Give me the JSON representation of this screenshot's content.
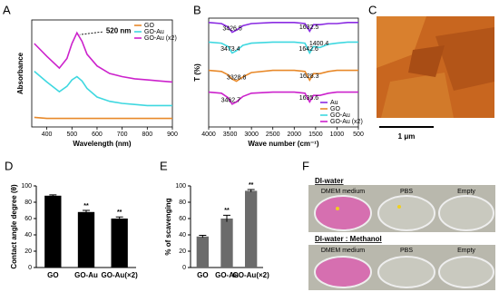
{
  "panels": [
    "A",
    "B",
    "C",
    "D",
    "E",
    "F"
  ],
  "chart_data": [
    {
      "type": "line",
      "xlabel": "Wavelength (nm)",
      "ylabel": "Absorbance",
      "x": [
        350,
        400,
        450,
        480,
        500,
        520,
        540,
        560,
        600,
        650,
        700,
        750,
        800,
        850,
        900
      ],
      "xlim": [
        340,
        900
      ],
      "xticks": [
        400,
        500,
        600,
        700,
        800,
        900
      ],
      "ylim": [
        0,
        1
      ],
      "legend": "upper right",
      "series": [
        {
          "name": "GO",
          "color": "#e8892a",
          "values": [
            0.09,
            0.08,
            0.08,
            0.08,
            0.08,
            0.08,
            0.08,
            0.08,
            0.08,
            0.08,
            0.08,
            0.08,
            0.08,
            0.08,
            0.08
          ]
        },
        {
          "name": "GO-Au",
          "color": "#3fd8e0",
          "values": [
            0.52,
            0.42,
            0.33,
            0.38,
            0.44,
            0.47,
            0.43,
            0.36,
            0.28,
            0.24,
            0.22,
            0.21,
            0.2,
            0.2,
            0.2
          ]
        },
        {
          "name": "GO-Au (x2)",
          "color": "#cc22cc",
          "values": [
            0.78,
            0.66,
            0.55,
            0.64,
            0.78,
            0.88,
            0.8,
            0.68,
            0.57,
            0.5,
            0.47,
            0.45,
            0.44,
            0.43,
            0.42
          ]
        }
      ],
      "annotations": [
        {
          "text": "520 nm",
          "x": 520,
          "y": 0.88
        }
      ]
    },
    {
      "type": "line",
      "xlabel": "Wave number (cm⁻¹)",
      "ylabel": "T (%)",
      "x": [
        4000,
        3700,
        3550,
        3450,
        3350,
        3200,
        3000,
        2500,
        2000,
        1750,
        1640,
        1550,
        1400,
        1200,
        1000,
        750,
        500
      ],
      "xlim": [
        4000,
        500
      ],
      "xticks": [
        4000,
        3500,
        3000,
        2500,
        2000,
        1500,
        1000,
        500
      ],
      "ylim": [
        0,
        100
      ],
      "legend": "lower right",
      "series": [
        {
          "name": "Au",
          "color": "#8a2be2",
          "values": [
            96,
            95,
            92,
            87,
            89,
            93,
            95,
            96,
            96,
            95,
            88,
            94,
            94,
            95,
            95,
            96,
            96
          ]
        },
        {
          "name": "GO",
          "color": "#e8892a",
          "values": [
            52,
            51,
            48,
            44,
            42,
            46,
            50,
            52,
            52,
            51,
            43,
            49,
            49,
            51,
            52,
            52,
            52
          ]
        },
        {
          "name": "GO-Au",
          "color": "#3fd8e0",
          "values": [
            78,
            77,
            74,
            68,
            70,
            75,
            77,
            78,
            78,
            77,
            68,
            74,
            73,
            76,
            77,
            78,
            78
          ]
        },
        {
          "name": "GO-Au (x2)",
          "color": "#cc22cc",
          "values": [
            32,
            31,
            27,
            21,
            23,
            28,
            31,
            32,
            32,
            31,
            23,
            29,
            29,
            31,
            32,
            32,
            32
          ]
        }
      ],
      "annotations": [
        {
          "x": 3426.5,
          "y": 87
        },
        {
          "x": 1632.5,
          "y": 88
        },
        {
          "x": 3473.4,
          "y": 68
        },
        {
          "x": 1642.6,
          "y": 68
        },
        {
          "x": 1400.4,
          "y": 73
        },
        {
          "x": 3328.8,
          "y": 42
        },
        {
          "x": 1628.3,
          "y": 43
        },
        {
          "x": 3462.7,
          "y": 21
        },
        {
          "x": 1635.6,
          "y": 23
        }
      ]
    },
    {
      "type": "bar",
      "ylabel": "Contact angle degree (θ)",
      "categories": [
        "GO",
        "GO-Au",
        "GO-Au(×2)"
      ],
      "values": [
        88,
        68,
        60
      ],
      "errors": [
        1,
        2,
        2
      ],
      "markers": [
        null,
        "**",
        "**"
      ],
      "color": "#000000",
      "ylim": [
        0,
        100
      ],
      "yticks": [
        0,
        20,
        40,
        60,
        80,
        100
      ]
    },
    {
      "type": "bar",
      "ylabel": "% of scavenging",
      "categories": [
        "GO",
        "GO-Au",
        "GO-Au(×2)"
      ],
      "values": [
        38,
        60,
        94
      ],
      "errors": [
        1.5,
        4,
        1.5
      ],
      "markers": [
        null,
        "**",
        "**"
      ],
      "color": "#6b6b6b",
      "ylim": [
        0,
        100
      ],
      "yticks": [
        0,
        20,
        40,
        60,
        80,
        100
      ]
    }
  ],
  "afm_image": {
    "scale_bar": "1 μm"
  },
  "photo": {
    "rows": [
      {
        "title": "DI-water",
        "columns": [
          "DMEM medium",
          "PBS",
          "Empty"
        ]
      },
      {
        "title": "DI-water : Methanol",
        "columns": [
          "DMEM medium",
          "PBS",
          "Empty"
        ]
      }
    ]
  }
}
